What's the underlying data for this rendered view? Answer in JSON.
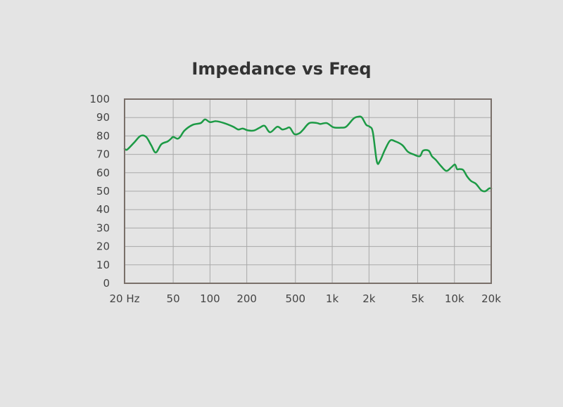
{
  "chart_data": {
    "type": "line",
    "title": "Impedance vs Freq",
    "xlabel": "",
    "ylabel": "",
    "x_scale": "log",
    "xlim": [
      20,
      20000
    ],
    "ylim": [
      0,
      100
    ],
    "grid": true,
    "x_ticks": [
      {
        "value": 20,
        "label": "20 Hz"
      },
      {
        "value": 50,
        "label": "50"
      },
      {
        "value": 100,
        "label": "100"
      },
      {
        "value": 200,
        "label": "200"
      },
      {
        "value": 500,
        "label": "500"
      },
      {
        "value": 1000,
        "label": "1k"
      },
      {
        "value": 2000,
        "label": "2k"
      },
      {
        "value": 5000,
        "label": "5k"
      },
      {
        "value": 10000,
        "label": "10k"
      },
      {
        "value": 20000,
        "label": "20k"
      }
    ],
    "y_ticks": [
      {
        "value": 0,
        "label": "0"
      },
      {
        "value": 10,
        "label": "10"
      },
      {
        "value": 20,
        "label": "20"
      },
      {
        "value": 30,
        "label": "30"
      },
      {
        "value": 40,
        "label": "40"
      },
      {
        "value": 50,
        "label": "50"
      },
      {
        "value": 60,
        "label": "60"
      },
      {
        "value": 70,
        "label": "70"
      },
      {
        "value": 80,
        "label": "80"
      },
      {
        "value": 90,
        "label": "90"
      },
      {
        "value": 100,
        "label": "100"
      }
    ],
    "series": [
      {
        "color": "#1c9a45",
        "x": [
          20,
          21,
          24,
          27,
          30,
          33,
          36,
          40,
          45,
          48,
          50,
          54,
          57,
          62,
          72,
          84,
          91,
          100,
          112,
          130,
          155,
          170,
          185,
          205,
          230,
          255,
          280,
          310,
          355,
          390,
          420,
          450,
          490,
          540,
          580,
          650,
          750,
          800,
          900,
          1000,
          1060,
          1180,
          1300,
          1500,
          1650,
          1750,
          1900,
          2030,
          2150,
          2320,
          2460,
          2700,
          2980,
          3300,
          3750,
          4150,
          4620,
          5210,
          5540,
          6150,
          6540,
          7040,
          7800,
          8600,
          9450,
          10100,
          10500,
          11000,
          11800,
          12700,
          13700,
          15000,
          16600,
          17900,
          19200,
          20000
        ],
        "values": [
          73,
          72.6,
          76.5,
          80,
          79.5,
          75,
          71,
          75.5,
          77,
          78.5,
          79.5,
          78.5,
          79.5,
          83,
          86,
          87,
          89,
          87.5,
          88,
          87,
          85,
          83.5,
          84,
          83,
          83,
          84.5,
          85.5,
          82,
          85,
          83.5,
          84,
          84.5,
          81,
          81.5,
          83.5,
          87,
          87,
          86.5,
          87,
          85,
          84.5,
          84.5,
          85,
          89.5,
          90.5,
          90,
          86,
          85,
          82,
          66,
          66.5,
          72.5,
          77.5,
          77,
          75,
          71.5,
          70,
          69,
          72,
          72,
          69,
          67,
          63.5,
          61,
          63,
          64.5,
          62,
          62,
          61.5,
          58,
          55.5,
          54,
          50.5,
          50,
          51.5,
          51.5
        ]
      }
    ]
  }
}
